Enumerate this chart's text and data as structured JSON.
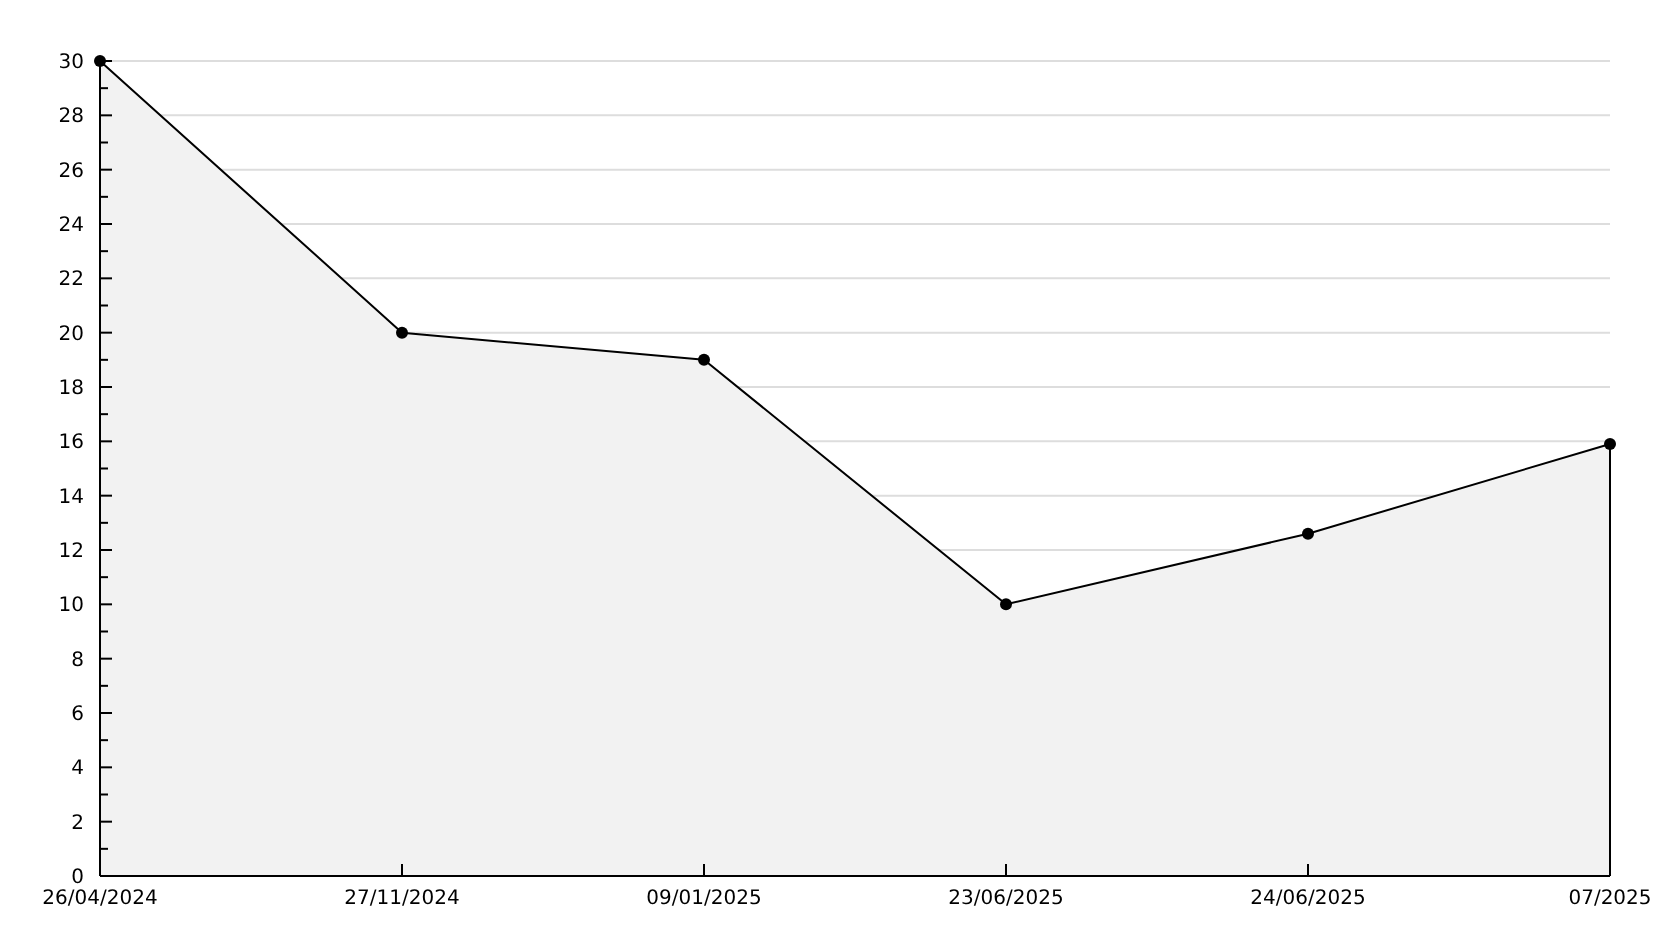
{
  "chart_data": {
    "type": "area",
    "categories": [
      "26/04/2024",
      "27/11/2024",
      "09/01/2025",
      "23/06/2025",
      "24/06/2025",
      "07/2025"
    ],
    "series": [
      {
        "color": "#000000",
        "values": [
          30,
          20,
          19,
          10,
          12.6,
          15.9
        ]
      }
    ],
    "ylim": [
      0,
      30
    ],
    "yticks": [
      0,
      {
        "value": 1,
        "label": null
      },
      2,
      {
        "value": 3,
        "label": null
      },
      4,
      {
        "value": 5,
        "label": null
      },
      6,
      {
        "value": 7,
        "label": null
      },
      8,
      {
        "value": 9,
        "label": null
      },
      10,
      {
        "value": 11,
        "label": null
      },
      12,
      {
        "value": 13,
        "label": null
      },
      14,
      {
        "value": 15,
        "label": null
      },
      16,
      {
        "value": 17,
        "label": null
      },
      18,
      {
        "value": 19,
        "label": null
      },
      20,
      {
        "value": 21,
        "label": null
      },
      22,
      {
        "value": 23,
        "label": null
      },
      24,
      {
        "value": 25,
        "label": null
      },
      26,
      {
        "value": 27,
        "label": null
      },
      28,
      {
        "value": 29,
        "label": null
      },
      30
    ],
    "grid": "y",
    "marker": "circle",
    "line_style": "solid"
  }
}
